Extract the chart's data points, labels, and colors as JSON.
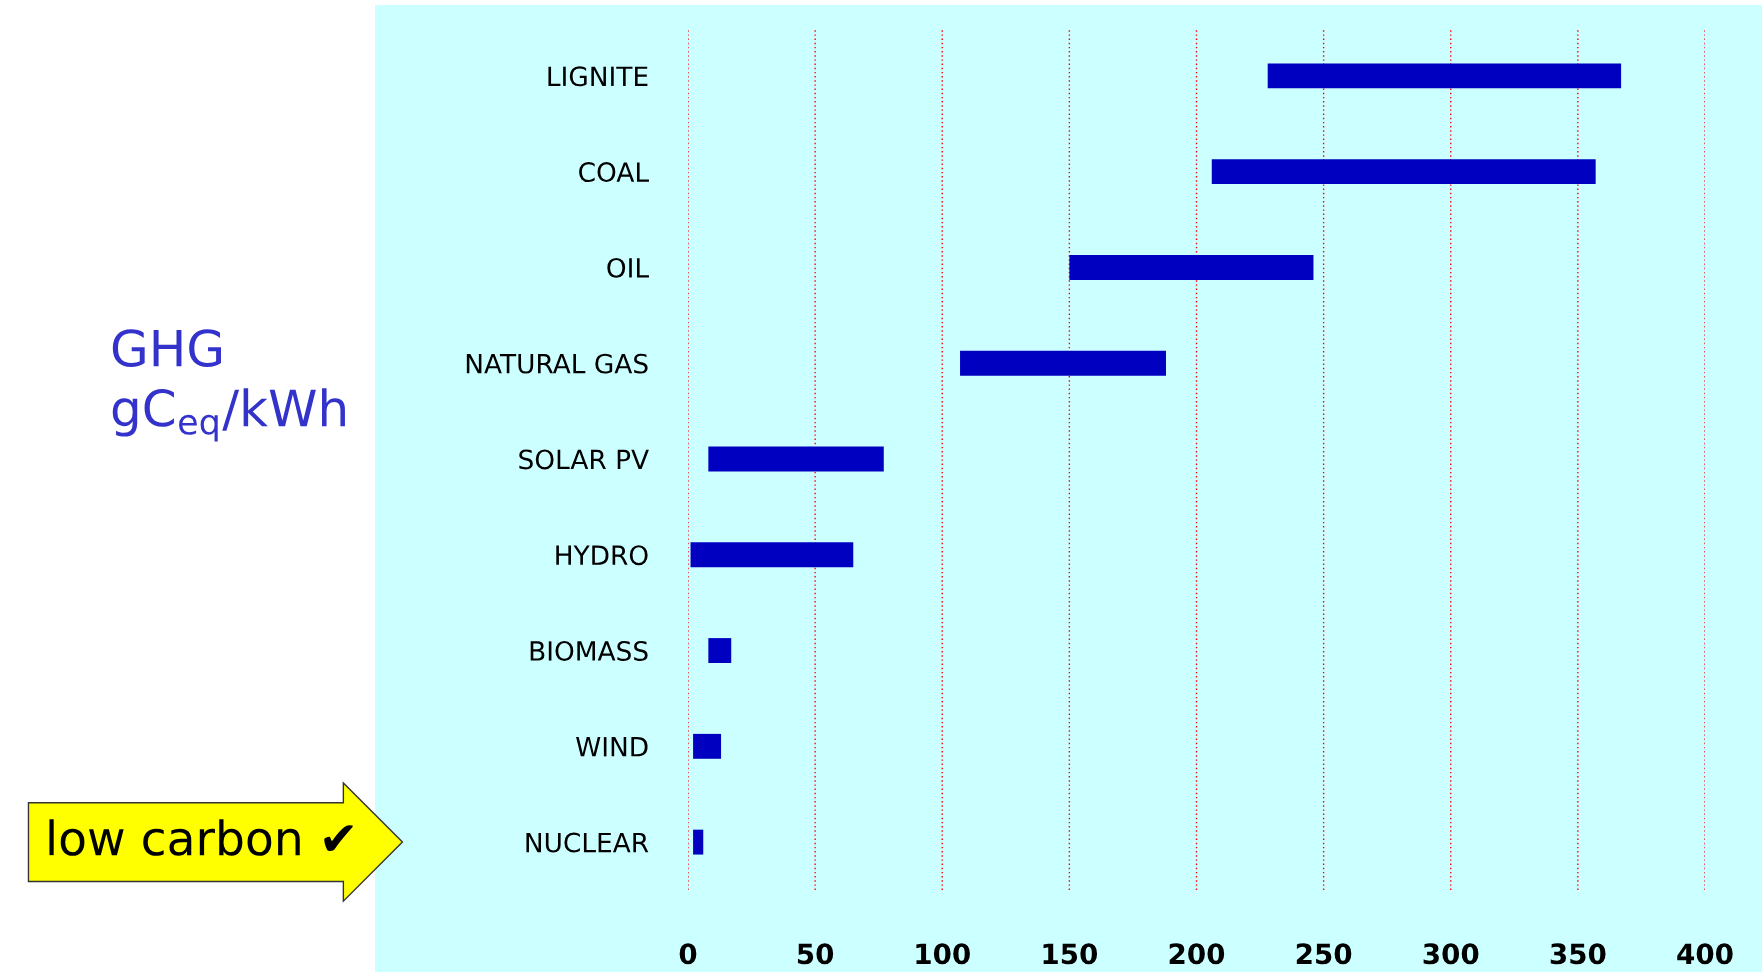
{
  "chart_data": {
    "type": "bar",
    "orientation": "horizontal",
    "ylabel": "GHG\ngC$_{eq}$/kWh",
    "categories": [
      "LIGNITE",
      "COAL",
      "OIL",
      "NATURAL GAS",
      "SOLAR PV",
      "HYDRO",
      "BIOMASS",
      "WIND",
      "NUCLEAR"
    ],
    "base": [
      228,
      206,
      150,
      107,
      8,
      1,
      8,
      2,
      2
    ],
    "values": [
      139,
      151,
      96,
      81,
      69,
      64,
      9,
      11,
      4
    ],
    "color": "#0000c0",
    "xlim": [
      0,
      400
    ],
    "xticks": [
      0,
      50,
      100,
      150,
      200,
      250,
      300,
      350,
      400
    ],
    "grid": "x",
    "legend": false,
    "annotations": [
      "low carbon ✔"
    ]
  }
}
